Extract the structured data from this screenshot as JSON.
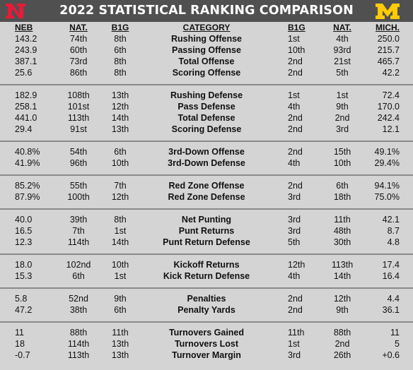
{
  "title": "2022 STATISTICAL RANKING COMPARISON",
  "colors": {
    "header_bg": "#505050",
    "nebraska_red": "#e41c38",
    "michigan_maize": "#ffcb05",
    "page_bg": "#d4d4d4"
  },
  "logos": {
    "nebraska": "N",
    "michigan": "M"
  },
  "columns": {
    "neb": "NEB",
    "neb_nat": "NAT.",
    "neb_b1g": "B1G",
    "category": "CATEGORY",
    "mich_b1g": "B1G",
    "mich_nat": "NAT.",
    "mich": "MICH."
  },
  "groups": [
    {
      "rows": [
        {
          "neb": "143.2",
          "neb_nat": "74th",
          "neb_b1g": "8th",
          "category": "Rushing Offense",
          "mich_b1g": "1st",
          "mich_nat": "4th",
          "mich": "250.0"
        },
        {
          "neb": "243.9",
          "neb_nat": "60th",
          "neb_b1g": "6th",
          "category": "Passing Offense",
          "mich_b1g": "10th",
          "mich_nat": "93rd",
          "mich": "215.7"
        },
        {
          "neb": "387.1",
          "neb_nat": "73rd",
          "neb_b1g": "8th",
          "category": "Total Offense",
          "mich_b1g": "2nd",
          "mich_nat": "21st",
          "mich": "465.7"
        },
        {
          "neb": "25.6",
          "neb_nat": "86th",
          "neb_b1g": "8th",
          "category": "Scoring Offense",
          "mich_b1g": "2nd",
          "mich_nat": "5th",
          "mich": "42.2"
        }
      ]
    },
    {
      "rows": [
        {
          "neb": "182.9",
          "neb_nat": "108th",
          "neb_b1g": "13th",
          "category": "Rushing Defense",
          "mich_b1g": "1st",
          "mich_nat": "1st",
          "mich": "72.4"
        },
        {
          "neb": "258.1",
          "neb_nat": "101st",
          "neb_b1g": "12th",
          "category": "Pass Defense",
          "mich_b1g": "4th",
          "mich_nat": "9th",
          "mich": "170.0"
        },
        {
          "neb": "441.0",
          "neb_nat": "113th",
          "neb_b1g": "14th",
          "category": "Total Defense",
          "mich_b1g": "2nd",
          "mich_nat": "2nd",
          "mich": "242.4"
        },
        {
          "neb": "29.4",
          "neb_nat": "91st",
          "neb_b1g": "13th",
          "category": "Scoring Defense",
          "mich_b1g": "2nd",
          "mich_nat": "3rd",
          "mich": "12.1"
        }
      ]
    },
    {
      "rows": [
        {
          "neb": "40.8%",
          "neb_nat": "54th",
          "neb_b1g": "6th",
          "category": "3rd-Down Offense",
          "mich_b1g": "2nd",
          "mich_nat": "15th",
          "mich": "49.1%"
        },
        {
          "neb": "41.9%",
          "neb_nat": "96th",
          "neb_b1g": "10th",
          "category": "3rd-Down Defense",
          "mich_b1g": "4th",
          "mich_nat": "10th",
          "mich": "29.4%"
        }
      ]
    },
    {
      "rows": [
        {
          "neb": "85.2%",
          "neb_nat": "55th",
          "neb_b1g": "7th",
          "category": "Red Zone Offense",
          "mich_b1g": "2nd",
          "mich_nat": "6th",
          "mich": "94.1%"
        },
        {
          "neb": "87.9%",
          "neb_nat": "100th",
          "neb_b1g": "12th",
          "category": "Red Zone Defense",
          "mich_b1g": "3rd",
          "mich_nat": "18th",
          "mich": "75.0%"
        }
      ]
    },
    {
      "rows": [
        {
          "neb": "40.0",
          "neb_nat": "39th",
          "neb_b1g": "8th",
          "category": "Net Punting",
          "mich_b1g": "3rd",
          "mich_nat": "11th",
          "mich": "42.1"
        },
        {
          "neb": "16.5",
          "neb_nat": "7th",
          "neb_b1g": "1st",
          "category": "Punt Returns",
          "mich_b1g": "3rd",
          "mich_nat": "48th",
          "mich": "8.7"
        },
        {
          "neb": "12.3",
          "neb_nat": "114th",
          "neb_b1g": "14th",
          "category": "Punt Return Defense",
          "mich_b1g": "5th",
          "mich_nat": "30th",
          "mich": "4.8"
        }
      ]
    },
    {
      "rows": [
        {
          "neb": "18.0",
          "neb_nat": "102nd",
          "neb_b1g": "10th",
          "category": "Kickoff Returns",
          "mich_b1g": "12th",
          "mich_nat": "113th",
          "mich": "17.4"
        },
        {
          "neb": "15.3",
          "neb_nat": "6th",
          "neb_b1g": "1st",
          "category": "Kick Return Defense",
          "mich_b1g": "4th",
          "mich_nat": "14th",
          "mich": "16.4"
        }
      ]
    },
    {
      "rows": [
        {
          "neb": "5.8",
          "neb_nat": "52nd",
          "neb_b1g": "9th",
          "category": "Penalties",
          "mich_b1g": "2nd",
          "mich_nat": "12th",
          "mich": "4.4"
        },
        {
          "neb": "47.2",
          "neb_nat": "38th",
          "neb_b1g": "6th",
          "category": "Penalty Yards",
          "mich_b1g": "2nd",
          "mich_nat": "9th",
          "mich": "36.1"
        }
      ]
    },
    {
      "rows": [
        {
          "neb": "11",
          "neb_nat": "88th",
          "neb_b1g": "11th",
          "category": "Turnovers Gained",
          "mich_b1g": "11th",
          "mich_nat": "88th",
          "mich": "11"
        },
        {
          "neb": "18",
          "neb_nat": "114th",
          "neb_b1g": "13th",
          "category": "Turnovers Lost",
          "mich_b1g": "1st",
          "mich_nat": "2nd",
          "mich": "5"
        },
        {
          "neb": "-0.7",
          "neb_nat": "113th",
          "neb_b1g": "13th",
          "category": "Turnover Margin",
          "mich_b1g": "3rd",
          "mich_nat": "26th",
          "mich": "+0.6"
        }
      ]
    }
  ]
}
